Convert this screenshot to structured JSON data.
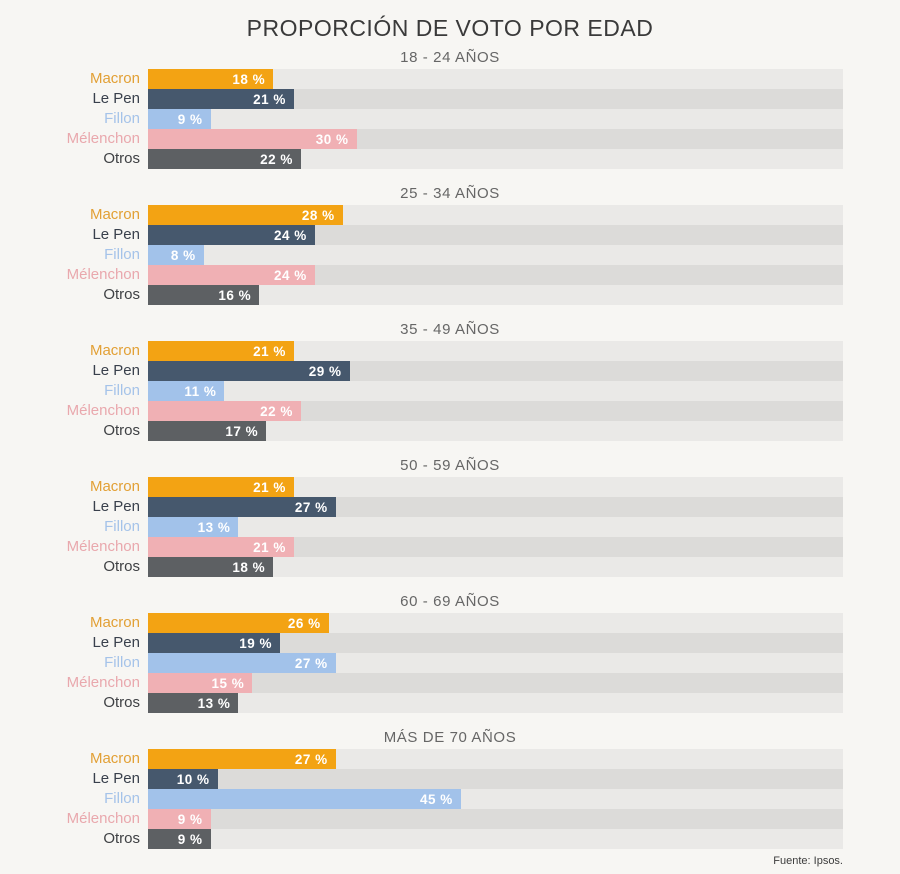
{
  "title": "PROPORCIÓN DE VOTO POR EDAD",
  "source": "Fuente: Ipsos.",
  "colors": {
    "background": "#f7f6f3",
    "track_light": "#eae9e7",
    "track_dark": "#dcdbd9",
    "value_text": "#ffffff",
    "title_text": "#3a3a3a",
    "header_text": "#666666"
  },
  "chart_data": {
    "type": "bar",
    "orientation": "horizontal",
    "title": "PROPORCIÓN DE VOTO POR EDAD",
    "unit": "%",
    "xlim": [
      0,
      100
    ],
    "grid": false,
    "legend_position": "row-labels-left",
    "categories": [
      "Macron",
      "Le Pen",
      "Fillon",
      "Mélenchon",
      "Otros"
    ],
    "category_colors": [
      "#f3a313",
      "#46586d",
      "#a2c2ea",
      "#f0b0b4",
      "#5d6063"
    ],
    "label_colors": [
      "#e2a035",
      "#39404c",
      "#a5c3e9",
      "#e9a8ad",
      "#3f4144"
    ],
    "groups": [
      {
        "label": "18 - 24 AÑOS",
        "values": [
          18,
          21,
          9,
          30,
          22
        ]
      },
      {
        "label": "25 - 34 AÑOS",
        "values": [
          28,
          24,
          8,
          24,
          16
        ]
      },
      {
        "label": "35 - 49 AÑOS",
        "values": [
          21,
          29,
          11,
          22,
          17
        ]
      },
      {
        "label": "50 - 59 AÑOS",
        "values": [
          21,
          27,
          13,
          21,
          18
        ]
      },
      {
        "label": "60 - 69 AÑOS",
        "values": [
          26,
          19,
          27,
          15,
          13
        ]
      },
      {
        "label": "MÁS DE 70 AÑOS",
        "values": [
          27,
          10,
          45,
          9,
          9
        ]
      }
    ]
  }
}
